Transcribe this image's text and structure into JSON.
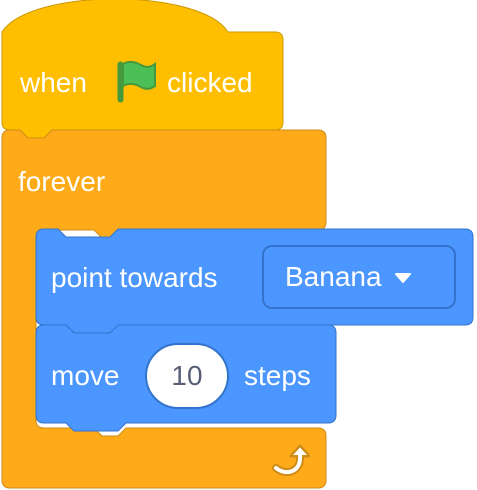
{
  "palette": {
    "events_fill": "#ffbf00",
    "events_stroke": "#cc9900",
    "control_fill": "#ffab19",
    "control_stroke": "#cf8b17",
    "motion_fill": "#4c97ff",
    "motion_stroke": "#3373cc",
    "flag_green": "#4cbf56",
    "flag_dark": "#45993d"
  },
  "script": {
    "hat_block": {
      "text_before": "when",
      "icon": "green-flag-icon",
      "text_after": "clicked"
    },
    "forever_block": {
      "label": "forever",
      "end_icon": "loop-arrow-icon"
    },
    "point_towards_block": {
      "label": "point towards",
      "dropdown_value": "Banana",
      "dropdown_icon": "caret-down-icon"
    },
    "move_block": {
      "text_before": "move",
      "steps_value": "10",
      "text_after": "steps"
    }
  }
}
